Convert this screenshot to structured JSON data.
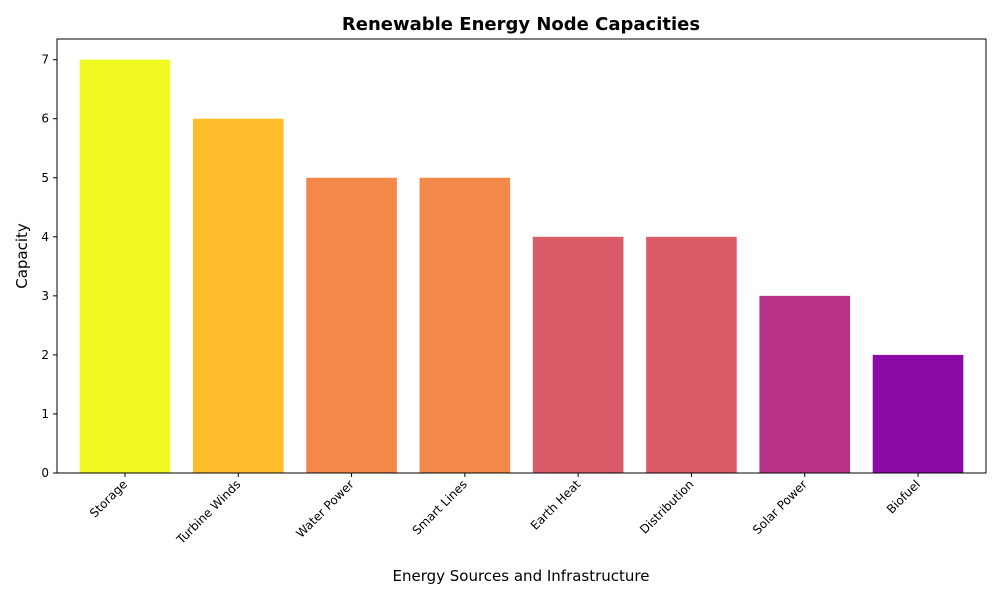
{
  "chart_data": {
    "type": "bar",
    "title": "Renewable Energy Node Capacities",
    "xlabel": "Energy Sources and Infrastructure",
    "ylabel": "Capacity",
    "categories": [
      "Storage",
      "Turbine Winds",
      "Water Power",
      "Smart Lines",
      "Earth Heat",
      "Distribution",
      "Solar Power",
      "Biofuel"
    ],
    "values": [
      7,
      6,
      5,
      5,
      4,
      4,
      3,
      2
    ],
    "colors": [
      "#f0f921",
      "#febd2a",
      "#f48849",
      "#f48849",
      "#db5c68",
      "#db5c68",
      "#b83289",
      "#8b0aa5"
    ],
    "ylim": [
      0,
      7.35
    ],
    "yticks": [
      0,
      1,
      2,
      3,
      4,
      5,
      6,
      7
    ],
    "grid": false,
    "legend": "none"
  }
}
